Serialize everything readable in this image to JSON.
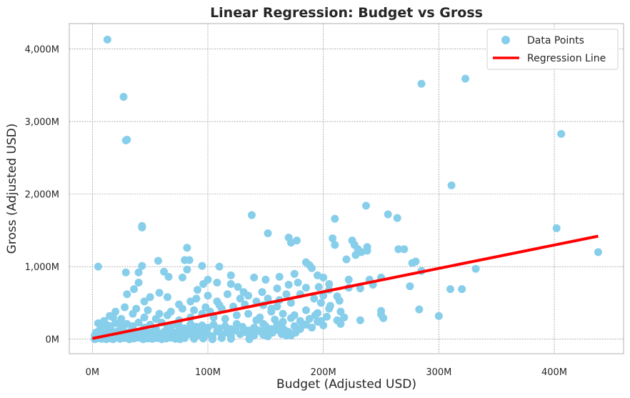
{
  "chart_data": {
    "type": "scatter",
    "title": "Linear Regression: Budget vs Gross",
    "xlabel": "Budget (Adjusted USD)",
    "ylabel": "Gross (Adjusted USD)",
    "xlim": [
      -20,
      460
    ],
    "ylim": [
      -200,
      4350
    ],
    "x_ticks": [
      0,
      100,
      200,
      300,
      400
    ],
    "x_tick_labels": [
      "0M",
      "100M",
      "200M",
      "300M",
      "400M"
    ],
    "y_ticks": [
      0,
      1000,
      2000,
      3000,
      4000
    ],
    "y_tick_labels": [
      "0M",
      "1,000M",
      "2,000M",
      "3,000M",
      "4,000M"
    ],
    "grid": true,
    "legend_position": "top-right",
    "colors": {
      "points": "#87ceeb",
      "line": "#ff0000",
      "grid": "#808080",
      "frame": "#cccccc"
    },
    "series": [
      {
        "name": "Data Points",
        "kind": "scatter",
        "points": [
          [
            13,
            4130
          ],
          [
            27,
            3340
          ],
          [
            29,
            2740
          ],
          [
            30,
            2750
          ],
          [
            285,
            3520
          ],
          [
            323,
            3590
          ],
          [
            406,
            2830
          ],
          [
            311,
            2120
          ],
          [
            402,
            1530
          ],
          [
            438,
            1200
          ],
          [
            43,
            1560
          ],
          [
            43,
            1540
          ],
          [
            138,
            1710
          ],
          [
            152,
            1460
          ],
          [
            210,
            1660
          ],
          [
            237,
            1840
          ],
          [
            256,
            1720
          ],
          [
            264,
            1670
          ],
          [
            5,
            1000
          ],
          [
            29,
            920
          ],
          [
            40,
            920
          ],
          [
            43,
            1010
          ],
          [
            57,
            1080
          ],
          [
            82,
            1260
          ],
          [
            80,
            1090
          ],
          [
            84,
            1090
          ],
          [
            110,
            1000
          ],
          [
            95,
            1010
          ],
          [
            120,
            880
          ],
          [
            170,
            1400
          ],
          [
            172,
            1330
          ],
          [
            177,
            1360
          ],
          [
            208,
            1390
          ],
          [
            210,
            1300
          ],
          [
            225,
            1360
          ],
          [
            227,
            1300
          ],
          [
            230,
            1240
          ],
          [
            233,
            1200
          ],
          [
            238,
            1270
          ],
          [
            238,
            1220
          ],
          [
            220,
            1100
          ],
          [
            228,
            1160
          ],
          [
            265,
            1240
          ],
          [
            270,
            1240
          ],
          [
            277,
            1050
          ],
          [
            280,
            1070
          ],
          [
            285,
            940
          ],
          [
            283,
            410
          ],
          [
            300,
            320
          ],
          [
            310,
            690
          ],
          [
            320,
            690
          ],
          [
            332,
            970
          ],
          [
            275,
            730
          ],
          [
            240,
            820
          ],
          [
            243,
            750
          ],
          [
            250,
            850
          ],
          [
            250,
            390
          ],
          [
            250,
            340
          ],
          [
            252,
            290
          ],
          [
            232,
            260
          ],
          [
            215,
            210
          ],
          [
            232,
            700
          ],
          [
            222,
            820
          ],
          [
            185,
            1060
          ],
          [
            190,
            980
          ],
          [
            195,
            880
          ],
          [
            200,
            850
          ],
          [
            205,
            760
          ],
          [
            200,
            600
          ],
          [
            180,
            620
          ],
          [
            160,
            700
          ],
          [
            170,
            750
          ],
          [
            175,
            900
          ],
          [
            162,
            860
          ],
          [
            140,
            850
          ],
          [
            150,
            820
          ],
          [
            147,
            650
          ],
          [
            135,
            600
          ],
          [
            128,
            560
          ],
          [
            117,
            620
          ],
          [
            108,
            520
          ],
          [
            100,
            600
          ],
          [
            90,
            560
          ],
          [
            85,
            520
          ],
          [
            75,
            480
          ],
          [
            65,
            580
          ],
          [
            58,
            640
          ],
          [
            50,
            580
          ],
          [
            45,
            520
          ],
          [
            40,
            780
          ],
          [
            36,
            690
          ],
          [
            30,
            620
          ],
          [
            62,
            930
          ],
          [
            66,
            860
          ],
          [
            78,
            850
          ],
          [
            82,
            960
          ],
          [
            20,
            380
          ],
          [
            15,
            320
          ],
          [
            25,
            280
          ],
          [
            35,
            350
          ],
          [
            45,
            300
          ],
          [
            55,
            280
          ],
          [
            65,
            330
          ],
          [
            75,
            260
          ],
          [
            85,
            300
          ],
          [
            95,
            350
          ],
          [
            105,
            300
          ],
          [
            115,
            280
          ],
          [
            125,
            330
          ],
          [
            135,
            350
          ],
          [
            145,
            300
          ],
          [
            155,
            380
          ],
          [
            165,
            350
          ],
          [
            175,
            330
          ],
          [
            185,
            400
          ],
          [
            195,
            360
          ],
          [
            205,
            420
          ],
          [
            215,
            380
          ],
          [
            5,
            220
          ],
          [
            10,
            250
          ],
          [
            15,
            180
          ],
          [
            20,
            220
          ],
          [
            25,
            190
          ],
          [
            30,
            210
          ],
          [
            35,
            180
          ],
          [
            40,
            230
          ],
          [
            45,
            160
          ],
          [
            50,
            200
          ],
          [
            55,
            150
          ],
          [
            60,
            230
          ],
          [
            65,
            170
          ],
          [
            70,
            200
          ],
          [
            75,
            180
          ],
          [
            80,
            150
          ],
          [
            85,
            210
          ],
          [
            90,
            170
          ],
          [
            95,
            190
          ],
          [
            100,
            160
          ],
          [
            105,
            200
          ],
          [
            110,
            150
          ],
          [
            115,
            180
          ],
          [
            120,
            140
          ],
          [
            125,
            210
          ],
          [
            130,
            170
          ],
          [
            135,
            120
          ],
          [
            140,
            160
          ],
          [
            145,
            110
          ],
          [
            150,
            180
          ],
          [
            155,
            140
          ],
          [
            160,
            200
          ],
          [
            165,
            150
          ],
          [
            170,
            100
          ],
          [
            175,
            180
          ],
          [
            180,
            250
          ],
          [
            185,
            200
          ],
          [
            190,
            160
          ],
          [
            195,
            240
          ],
          [
            200,
            190
          ],
          [
            2,
            50
          ],
          [
            3,
            90
          ],
          [
            4,
            30
          ],
          [
            6,
            120
          ],
          [
            8,
            70
          ],
          [
            10,
            40
          ],
          [
            12,
            100
          ],
          [
            14,
            60
          ],
          [
            16,
            130
          ],
          [
            18,
            80
          ],
          [
            20,
            50
          ],
          [
            22,
            110
          ],
          [
            24,
            70
          ],
          [
            26,
            140
          ],
          [
            28,
            40
          ],
          [
            30,
            90
          ],
          [
            32,
            60
          ],
          [
            34,
            120
          ],
          [
            36,
            30
          ],
          [
            38,
            80
          ],
          [
            40,
            100
          ],
          [
            42,
            50
          ],
          [
            44,
            130
          ],
          [
            46,
            70
          ],
          [
            48,
            20
          ],
          [
            50,
            90
          ],
          [
            52,
            60
          ],
          [
            54,
            110
          ],
          [
            56,
            40
          ],
          [
            58,
            80
          ],
          [
            60,
            50
          ],
          [
            62,
            100
          ],
          [
            64,
            30
          ],
          [
            66,
            70
          ],
          [
            68,
            120
          ],
          [
            70,
            60
          ],
          [
            72,
            90
          ],
          [
            74,
            40
          ],
          [
            76,
            110
          ],
          [
            78,
            70
          ],
          [
            80,
            30
          ],
          [
            82,
            90
          ],
          [
            84,
            130
          ],
          [
            86,
            60
          ],
          [
            88,
            100
          ],
          [
            90,
            40
          ],
          [
            92,
            80
          ],
          [
            94,
            120
          ],
          [
            96,
            50
          ],
          [
            98,
            90
          ],
          [
            100,
            70
          ],
          [
            104,
            40
          ],
          [
            108,
            110
          ],
          [
            112,
            60
          ],
          [
            116,
            90
          ],
          [
            120,
            40
          ],
          [
            124,
            120
          ],
          [
            128,
            70
          ],
          [
            132,
            100
          ],
          [
            136,
            50
          ],
          [
            140,
            80
          ],
          [
            144,
            120
          ],
          [
            148,
            60
          ],
          [
            152,
            40
          ],
          [
            156,
            90
          ],
          [
            160,
            130
          ],
          [
            164,
            70
          ],
          [
            168,
            110
          ],
          [
            172,
            50
          ],
          [
            176,
            90
          ],
          [
            180,
            140
          ],
          [
            2,
            0
          ],
          [
            4,
            10
          ],
          [
            6,
            20
          ],
          [
            8,
            5
          ],
          [
            10,
            15
          ],
          [
            12,
            0
          ],
          [
            14,
            25
          ],
          [
            16,
            10
          ],
          [
            18,
            0
          ],
          [
            20,
            20
          ],
          [
            24,
            5
          ],
          [
            28,
            15
          ],
          [
            32,
            0
          ],
          [
            36,
            10
          ],
          [
            40,
            20
          ],
          [
            44,
            0
          ],
          [
            48,
            10
          ],
          [
            52,
            5
          ],
          [
            56,
            15
          ],
          [
            60,
            0
          ],
          [
            64,
            10
          ],
          [
            68,
            20
          ],
          [
            72,
            5
          ],
          [
            76,
            0
          ],
          [
            80,
            15
          ],
          [
            88,
            5
          ],
          [
            96,
            10
          ],
          [
            104,
            0
          ],
          [
            112,
            15
          ],
          [
            120,
            5
          ],
          [
            136,
            0
          ],
          [
            140,
            50
          ],
          [
            168,
            50
          ],
          [
            150,
            90
          ],
          [
            165,
            240
          ],
          [
            172,
            290
          ],
          [
            182,
            210
          ],
          [
            188,
            280
          ],
          [
            193,
            330
          ],
          [
            198,
            250
          ],
          [
            203,
            310
          ],
          [
            212,
            260
          ],
          [
            218,
            300
          ],
          [
            142,
            260
          ],
          [
            148,
            210
          ],
          [
            158,
            270
          ],
          [
            102,
            380
          ],
          [
            112,
            420
          ],
          [
            122,
            450
          ],
          [
            132,
            480
          ],
          [
            142,
            520
          ],
          [
            152,
            560
          ],
          [
            162,
            540
          ],
          [
            110,
            470
          ],
          [
            98,
            440
          ],
          [
            88,
            400
          ],
          [
            78,
            420
          ],
          [
            68,
            380
          ],
          [
            58,
            350
          ],
          [
            48,
            400
          ],
          [
            38,
            420
          ],
          [
            28,
            440
          ],
          [
            18,
            300
          ],
          [
            8,
            160
          ],
          [
            12,
            200
          ],
          [
            192,
            560
          ],
          [
            198,
            500
          ],
          [
            206,
            460
          ],
          [
            214,
            530
          ],
          [
            160,
            450
          ],
          [
            155,
            420
          ],
          [
            148,
            470
          ],
          [
            96,
            760
          ],
          [
            91,
            680
          ],
          [
            126,
            720
          ],
          [
            131,
            650
          ],
          [
            188,
            1020
          ],
          [
            196,
            720
          ],
          [
            185,
            710
          ],
          [
            172,
            500
          ],
          [
            168,
            620
          ],
          [
            178,
            780
          ],
          [
            108,
            780
          ],
          [
            120,
            760
          ],
          [
            100,
            820
          ],
          [
            205,
            680
          ],
          [
            212,
            590
          ],
          [
            222,
            710
          ]
        ]
      },
      {
        "name": "Regression Line",
        "kind": "line",
        "points": [
          [
            0,
            10
          ],
          [
            438,
            1420
          ]
        ]
      }
    ]
  }
}
